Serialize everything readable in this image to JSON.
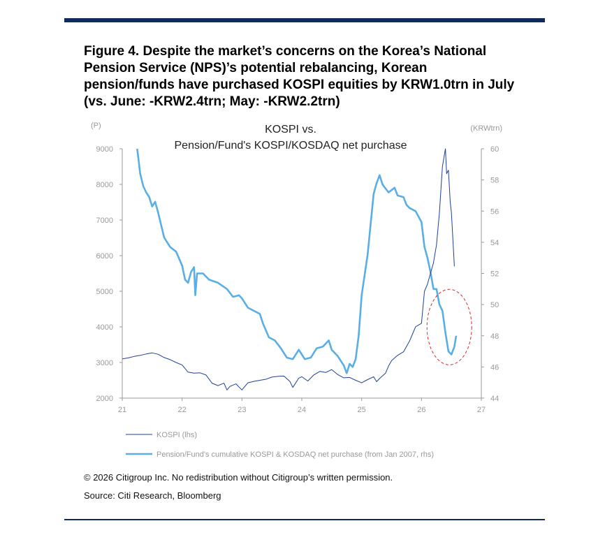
{
  "figure": {
    "title": "Figure 4. Despite the market’s concerns on the Korea’s National Pension Service (NPS)’s potential rebalancing, Korean pension/funds have purchased KOSPI equities by KRW1.0trn in July (vs. June: -KRW2.4trn; May: -KRW2.2trn)",
    "copyright": "© 2026 Citigroup Inc. No redistribution without Citigroup’s written permission.",
    "source": "Source: Citi Research, Bloomberg"
  },
  "colors": {
    "rule": "#0f2a5c",
    "kospi": "#1f3f9a",
    "pension": "#5aaee6",
    "highlight": "#d42a2a"
  },
  "chart_data": {
    "type": "line",
    "title": "KOSPI vs.",
    "subtitle": "Pension/Fund's KOSPI/KOSDAQ net purchase",
    "yleft_unit": "(P)",
    "yright_unit": "(KRWtrn)",
    "x_ticks": [
      "21",
      "22",
      "23",
      "24",
      "25",
      "26",
      "27"
    ],
    "x_range": [
      2021,
      2027
    ],
    "yleft_ticks": [
      "9000",
      "8000",
      "7000",
      "6000",
      "5000",
      "4000",
      "3000",
      "2000"
    ],
    "yleft_range": [
      2000,
      9000
    ],
    "yright_ticks": [
      "60",
      "58",
      "56",
      "54",
      "52",
      "50",
      "48",
      "46",
      "44"
    ],
    "yright_range": [
      44,
      60
    ],
    "grid": false,
    "legend_position": "bottom",
    "annotation": "red dashed circle around the latest pension/fund purchase readings",
    "series": [
      {
        "name": "KOSPI (lhs)",
        "axis": "left",
        "points": [
          [
            2021.0,
            3100
          ],
          [
            2021.1,
            3130
          ],
          [
            2021.2,
            3170
          ],
          [
            2021.3,
            3200
          ],
          [
            2021.4,
            3240
          ],
          [
            2021.5,
            3270
          ],
          [
            2021.6,
            3230
          ],
          [
            2021.7,
            3140
          ],
          [
            2021.8,
            3080
          ],
          [
            2021.9,
            3000
          ],
          [
            2022.0,
            2930
          ],
          [
            2022.1,
            2730
          ],
          [
            2022.2,
            2700
          ],
          [
            2022.3,
            2710
          ],
          [
            2022.4,
            2650
          ],
          [
            2022.5,
            2420
          ],
          [
            2022.6,
            2350
          ],
          [
            2022.7,
            2420
          ],
          [
            2022.75,
            2230
          ],
          [
            2022.8,
            2330
          ],
          [
            2022.9,
            2400
          ],
          [
            2023.0,
            2230
          ],
          [
            2023.1,
            2430
          ],
          [
            2023.2,
            2470
          ],
          [
            2023.3,
            2500
          ],
          [
            2023.4,
            2530
          ],
          [
            2023.5,
            2590
          ],
          [
            2023.6,
            2610
          ],
          [
            2023.7,
            2620
          ],
          [
            2023.8,
            2470
          ],
          [
            2023.85,
            2300
          ],
          [
            2023.95,
            2560
          ],
          [
            2024.0,
            2600
          ],
          [
            2024.1,
            2480
          ],
          [
            2024.2,
            2650
          ],
          [
            2024.3,
            2750
          ],
          [
            2024.4,
            2720
          ],
          [
            2024.5,
            2800
          ],
          [
            2024.6,
            2660
          ],
          [
            2024.7,
            2570
          ],
          [
            2024.8,
            2580
          ],
          [
            2024.9,
            2500
          ],
          [
            2025.0,
            2430
          ],
          [
            2025.1,
            2520
          ],
          [
            2025.2,
            2600
          ],
          [
            2025.25,
            2460
          ],
          [
            2025.3,
            2550
          ],
          [
            2025.4,
            2700
          ],
          [
            2025.45,
            2900
          ],
          [
            2025.5,
            3050
          ],
          [
            2025.6,
            3200
          ],
          [
            2025.7,
            3300
          ],
          [
            2025.8,
            3600
          ],
          [
            2025.9,
            4000
          ],
          [
            2026.0,
            4100
          ],
          [
            2026.05,
            5000
          ],
          [
            2026.1,
            5200
          ],
          [
            2026.15,
            5500
          ],
          [
            2026.2,
            5800
          ],
          [
            2026.25,
            6300
          ],
          [
            2026.3,
            7200
          ],
          [
            2026.35,
            8500
          ],
          [
            2026.4,
            9000
          ],
          [
            2026.42,
            8300
          ],
          [
            2026.45,
            8400
          ],
          [
            2026.48,
            7500
          ],
          [
            2026.5,
            7200
          ],
          [
            2026.55,
            5700
          ]
        ]
      },
      {
        "name": "Pension/Fund's cumulative KOSPI & KOSDAQ net purchase (from Jan 2007, rhs)",
        "axis": "right",
        "points": [
          [
            2021.25,
            60.0
          ],
          [
            2021.3,
            58.4
          ],
          [
            2021.35,
            57.6
          ],
          [
            2021.4,
            57.2
          ],
          [
            2021.45,
            56.9
          ],
          [
            2021.5,
            56.3
          ],
          [
            2021.55,
            56.6
          ],
          [
            2021.6,
            55.9
          ],
          [
            2021.7,
            54.3
          ],
          [
            2021.8,
            53.7
          ],
          [
            2021.9,
            53.4
          ],
          [
            2022.0,
            52.5
          ],
          [
            2022.05,
            51.6
          ],
          [
            2022.1,
            51.4
          ],
          [
            2022.15,
            52.1
          ],
          [
            2022.2,
            52.4
          ],
          [
            2022.22,
            50.6
          ],
          [
            2022.25,
            52.0
          ],
          [
            2022.35,
            52.0
          ],
          [
            2022.45,
            51.6
          ],
          [
            2022.6,
            51.4
          ],
          [
            2022.75,
            51.0
          ],
          [
            2022.85,
            50.5
          ],
          [
            2022.95,
            50.6
          ],
          [
            2023.0,
            50.4
          ],
          [
            2023.1,
            49.8
          ],
          [
            2023.2,
            49.6
          ],
          [
            2023.3,
            49.4
          ],
          [
            2023.35,
            48.8
          ],
          [
            2023.45,
            47.9
          ],
          [
            2023.55,
            47.7
          ],
          [
            2023.65,
            47.2
          ],
          [
            2023.75,
            46.6
          ],
          [
            2023.85,
            46.5
          ],
          [
            2023.95,
            47.1
          ],
          [
            2024.05,
            46.5
          ],
          [
            2024.15,
            46.6
          ],
          [
            2024.25,
            47.2
          ],
          [
            2024.35,
            47.3
          ],
          [
            2024.45,
            47.7
          ],
          [
            2024.5,
            47.1
          ],
          [
            2024.6,
            46.7
          ],
          [
            2024.7,
            46.1
          ],
          [
            2024.75,
            45.6
          ],
          [
            2024.8,
            46.2
          ],
          [
            2024.85,
            46.0
          ],
          [
            2024.9,
            46.5
          ],
          [
            2024.95,
            48.0
          ],
          [
            2025.0,
            50.6
          ],
          [
            2025.1,
            53.2
          ],
          [
            2025.2,
            57.1
          ],
          [
            2025.25,
            57.8
          ],
          [
            2025.3,
            58.3
          ],
          [
            2025.35,
            57.7
          ],
          [
            2025.45,
            57.2
          ],
          [
            2025.55,
            57.5
          ],
          [
            2025.6,
            57.0
          ],
          [
            2025.7,
            56.9
          ],
          [
            2025.75,
            56.4
          ],
          [
            2025.8,
            56.2
          ],
          [
            2025.9,
            56.0
          ],
          [
            2026.0,
            55.3
          ],
          [
            2026.05,
            53.7
          ],
          [
            2026.1,
            53.0
          ],
          [
            2026.15,
            52.1
          ],
          [
            2026.2,
            51.0
          ],
          [
            2026.25,
            51.0
          ],
          [
            2026.3,
            50.0
          ],
          [
            2026.35,
            49.6
          ],
          [
            2026.4,
            48.2
          ],
          [
            2026.45,
            47.0
          ],
          [
            2026.5,
            46.8
          ],
          [
            2026.55,
            47.3
          ],
          [
            2026.58,
            48.0
          ]
        ]
      }
    ]
  }
}
